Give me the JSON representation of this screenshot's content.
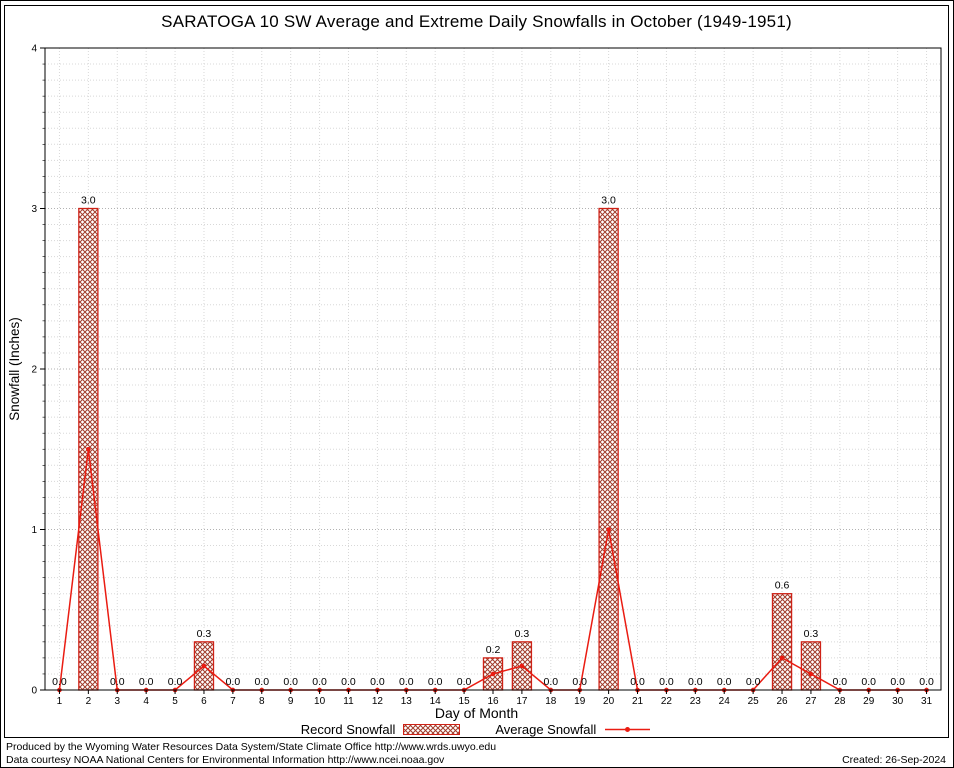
{
  "title": "SARATOGA 10 SW Average and Extreme Daily Snowfalls in October (1949-1951)",
  "axis": {
    "xlabel": "Day of Month",
    "ylabel": "Snowfall (Inches)"
  },
  "legend": {
    "record": "Record Snowfall",
    "average": "Average Snowfall"
  },
  "footer": {
    "line1": "Produced by the Wyoming Water Resources Data System/State Climate Office http://www.wrds.uwyo.edu",
    "line2": "Data courtesy NOAA National Centers for Environmental Information http://www.ncei.noaa.gov",
    "created": "Created: 26-Sep-2024"
  },
  "chart_data": {
    "type": "bar",
    "title": "SARATOGA 10 SW Average and Extreme Daily Snowfalls in October (1949-1951)",
    "xlabel": "Day of Month",
    "ylabel": "Snowfall (Inches)",
    "ylim": [
      0,
      4
    ],
    "yticks": [
      0,
      1,
      2,
      3,
      4
    ],
    "grid": true,
    "legend_position": "bottom",
    "x": [
      1,
      2,
      3,
      4,
      5,
      6,
      7,
      8,
      9,
      10,
      11,
      12,
      13,
      14,
      15,
      16,
      17,
      18,
      19,
      20,
      21,
      22,
      23,
      24,
      25,
      26,
      27,
      28,
      29,
      30,
      31
    ],
    "series": [
      {
        "name": "Record Snowfall",
        "type": "bar",
        "values": [
          0,
          3,
          0,
          0,
          0,
          0.3,
          0,
          0,
          0,
          0,
          0,
          0,
          0,
          0,
          0,
          0.2,
          0.3,
          0,
          0,
          3,
          0,
          0,
          0,
          0,
          0,
          0.6,
          0.3,
          0,
          0,
          0,
          0
        ],
        "labels": [
          "0.0",
          "3.0",
          "0.0",
          "0.0",
          "0.0",
          "0.3",
          "0.0",
          "0.0",
          "0.0",
          "0.0",
          "0.0",
          "0.0",
          "0.0",
          "0.0",
          "0.0",
          "0.2",
          "0.3",
          "0.0",
          "0.0",
          "3.0",
          "0.0",
          "0.0",
          "0.0",
          "0.0",
          "0.0",
          "0.6",
          "0.3",
          "0.0",
          "0.0",
          "0.0",
          "0.0"
        ]
      },
      {
        "name": "Average Snowfall",
        "type": "line",
        "values": [
          0,
          1.5,
          0,
          0,
          0,
          0.15,
          0,
          0,
          0,
          0,
          0,
          0,
          0,
          0,
          0,
          0.1,
          0.15,
          0,
          0,
          1.0,
          0,
          0,
          0,
          0,
          0,
          0.2,
          0.1,
          0,
          0,
          0,
          0
        ]
      }
    ],
    "colors": {
      "bar_fill_hatch": "#a13c2b",
      "bar_edge": "#cf2217",
      "line": "#ea1c12",
      "grid_minor": "#d8d8d8",
      "grid_major": "#b2b2b2",
      "axis": "#000000"
    }
  }
}
